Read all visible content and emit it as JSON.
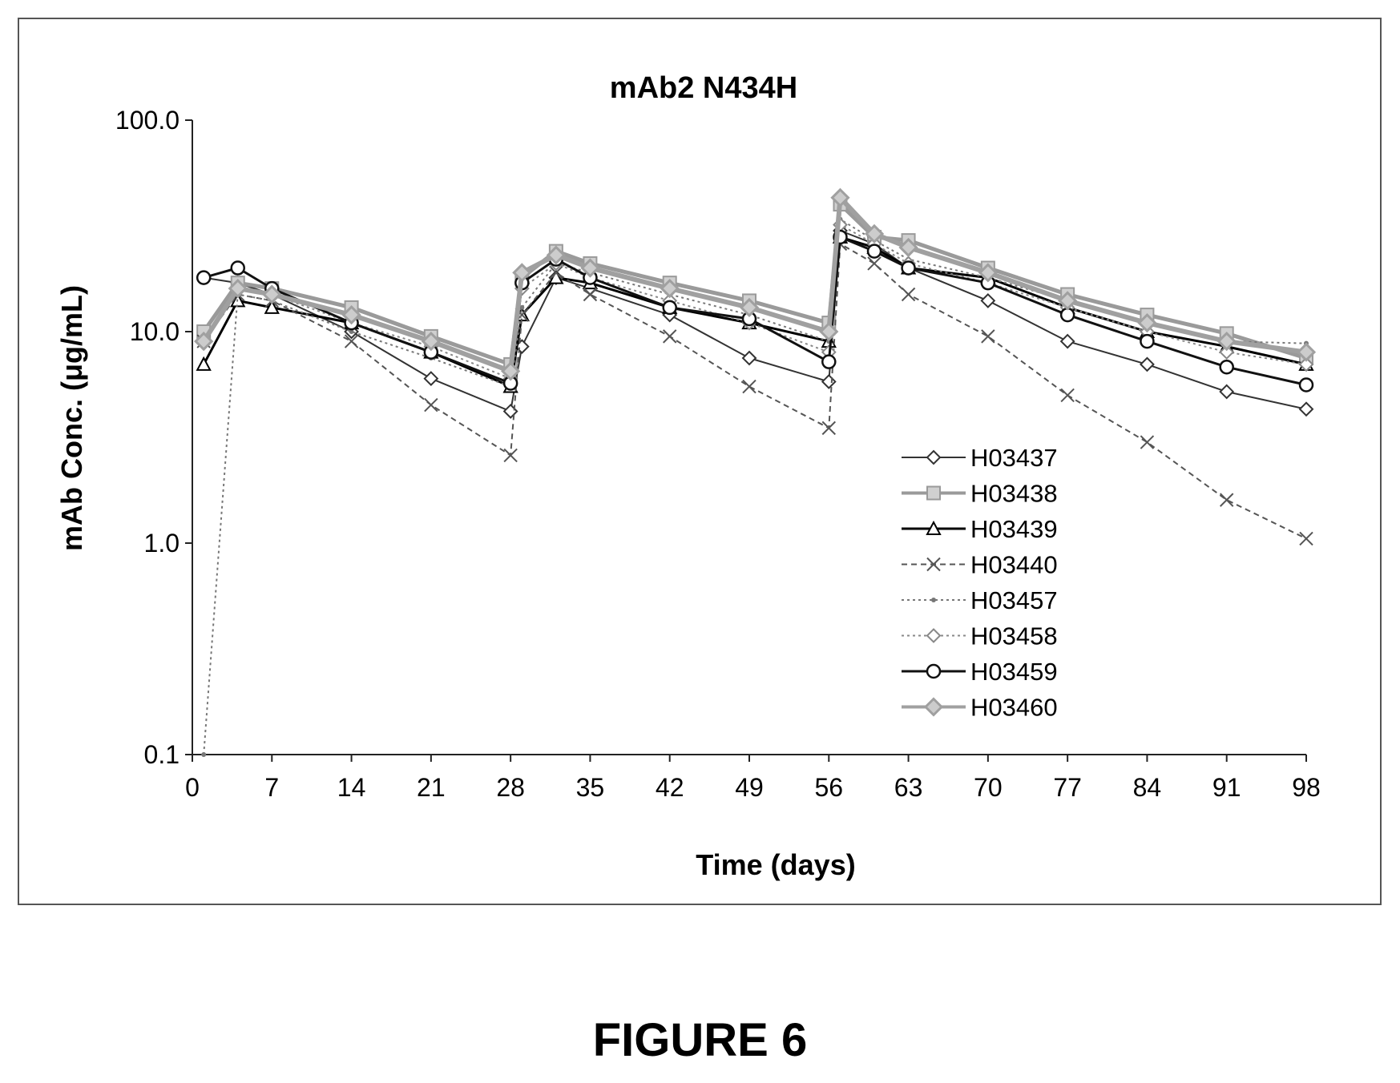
{
  "figure": {
    "caption": "FIGURE 6"
  },
  "chart_data": {
    "type": "line",
    "title": "mAb2 N434H",
    "xlabel": "Time (days)",
    "ylabel": "mAb Conc. (μg/mL)",
    "yscale": "log",
    "xlim": [
      0,
      98
    ],
    "ylim": [
      0.1,
      100
    ],
    "xticks": [
      "0",
      "7",
      "14",
      "21",
      "28",
      "35",
      "42",
      "49",
      "56",
      "63",
      "70",
      "77",
      "84",
      "91",
      "98"
    ],
    "yticks": [
      "0.1",
      "1.0",
      "10.0",
      "100.0"
    ],
    "legend_position": "right-middle",
    "grid": false,
    "series": [
      {
        "name": "H03437",
        "marker": "diamond",
        "dash": "",
        "color": "#333333",
        "width": 2,
        "points": [
          [
            1,
            18
          ],
          [
            4,
            17
          ],
          [
            7,
            15
          ],
          [
            14,
            10
          ],
          [
            21,
            6
          ],
          [
            28,
            4.2
          ],
          [
            29,
            8.5
          ],
          [
            32,
            18
          ],
          [
            35,
            16
          ],
          [
            42,
            12
          ],
          [
            49,
            7.5
          ],
          [
            56,
            5.8
          ],
          [
            57,
            30
          ],
          [
            60,
            26
          ],
          [
            63,
            20
          ],
          [
            70,
            14
          ],
          [
            77,
            9
          ],
          [
            84,
            7
          ],
          [
            91,
            5.2
          ],
          [
            98,
            4.3
          ]
        ]
      },
      {
        "name": "H03438",
        "marker": "square-hatch",
        "dash": "",
        "color": "#9a9a9a",
        "width": 5,
        "points": [
          [
            1,
            10
          ],
          [
            4,
            17
          ],
          [
            7,
            16
          ],
          [
            14,
            13
          ],
          [
            21,
            9.5
          ],
          [
            28,
            7
          ],
          [
            29,
            18
          ],
          [
            32,
            24
          ],
          [
            35,
            21
          ],
          [
            42,
            17
          ],
          [
            49,
            14
          ],
          [
            56,
            11
          ],
          [
            57,
            40
          ],
          [
            60,
            28
          ],
          [
            63,
            27
          ],
          [
            70,
            20
          ],
          [
            77,
            15
          ],
          [
            84,
            12
          ],
          [
            91,
            9.8
          ],
          [
            98,
            7.5
          ]
        ]
      },
      {
        "name": "H03439",
        "marker": "triangle",
        "dash": "",
        "color": "#000000",
        "width": 3,
        "points": [
          [
            1,
            7
          ],
          [
            4,
            14
          ],
          [
            7,
            13
          ],
          [
            14,
            11
          ],
          [
            21,
            8
          ],
          [
            28,
            5.5
          ],
          [
            29,
            12
          ],
          [
            32,
            18
          ],
          [
            35,
            17
          ],
          [
            42,
            13
          ],
          [
            49,
            11
          ],
          [
            56,
            9
          ],
          [
            57,
            28
          ],
          [
            60,
            25
          ],
          [
            63,
            20
          ],
          [
            70,
            18
          ],
          [
            77,
            13
          ],
          [
            84,
            10
          ],
          [
            91,
            8.5
          ],
          [
            98,
            7
          ]
        ]
      },
      {
        "name": "H03440",
        "marker": "x",
        "dash": "7 5",
        "color": "#555555",
        "width": 2,
        "points": [
          [
            1,
            9
          ],
          [
            4,
            15
          ],
          [
            7,
            14
          ],
          [
            14,
            9
          ],
          [
            21,
            4.5
          ],
          [
            28,
            2.6
          ],
          [
            29,
            12
          ],
          [
            32,
            19
          ],
          [
            35,
            15
          ],
          [
            42,
            9.5
          ],
          [
            49,
            5.5
          ],
          [
            56,
            3.5
          ],
          [
            57,
            26
          ],
          [
            60,
            21
          ],
          [
            63,
            15
          ],
          [
            70,
            9.5
          ],
          [
            77,
            5
          ],
          [
            84,
            3
          ],
          [
            91,
            1.6
          ],
          [
            98,
            1.05
          ]
        ]
      },
      {
        "name": "H03457",
        "marker": "dot",
        "dash": "3 4",
        "color": "#777777",
        "width": 2,
        "points": [
          [
            1,
            0.1
          ],
          [
            4,
            15
          ],
          [
            7,
            14
          ],
          [
            14,
            10
          ],
          [
            21,
            7.5
          ],
          [
            28,
            5.5
          ],
          [
            29,
            13
          ],
          [
            32,
            21
          ],
          [
            35,
            19
          ],
          [
            42,
            15
          ],
          [
            49,
            12
          ],
          [
            56,
            9
          ],
          [
            57,
            34
          ],
          [
            60,
            27
          ],
          [
            63,
            22
          ],
          [
            70,
            18
          ],
          [
            77,
            14
          ],
          [
            84,
            11
          ],
          [
            91,
            9
          ],
          [
            98,
            8.8
          ]
        ]
      },
      {
        "name": "H03458",
        "marker": "diamond-open",
        "dash": "3 4",
        "color": "#888888",
        "width": 2,
        "points": [
          [
            1,
            9
          ],
          [
            4,
            16
          ],
          [
            7,
            15
          ],
          [
            14,
            11
          ],
          [
            21,
            8.5
          ],
          [
            28,
            6
          ],
          [
            29,
            16
          ],
          [
            32,
            21
          ],
          [
            35,
            18
          ],
          [
            42,
            14
          ],
          [
            49,
            11
          ],
          [
            56,
            8
          ],
          [
            57,
            32
          ],
          [
            60,
            26
          ],
          [
            63,
            21
          ],
          [
            70,
            17
          ],
          [
            77,
            13
          ],
          [
            84,
            10
          ],
          [
            91,
            8
          ],
          [
            98,
            7
          ]
        ]
      },
      {
        "name": "H03459",
        "marker": "circle",
        "dash": "",
        "color": "#111111",
        "width": 3,
        "points": [
          [
            1,
            18
          ],
          [
            4,
            20
          ],
          [
            7,
            16
          ],
          [
            14,
            11
          ],
          [
            21,
            8
          ],
          [
            28,
            5.7
          ],
          [
            29,
            17
          ],
          [
            32,
            22
          ],
          [
            35,
            18
          ],
          [
            42,
            13
          ],
          [
            49,
            11.5
          ],
          [
            56,
            7.2
          ],
          [
            57,
            28
          ],
          [
            60,
            24
          ],
          [
            63,
            20
          ],
          [
            70,
            17
          ],
          [
            77,
            12
          ],
          [
            84,
            9
          ],
          [
            91,
            6.8
          ],
          [
            98,
            5.6
          ]
        ]
      },
      {
        "name": "H03460",
        "marker": "diamond-hatch",
        "dash": "",
        "color": "#a0a0a0",
        "width": 6,
        "points": [
          [
            1,
            9
          ],
          [
            4,
            16
          ],
          [
            7,
            15
          ],
          [
            14,
            12
          ],
          [
            21,
            9
          ],
          [
            28,
            6.5
          ],
          [
            29,
            19
          ],
          [
            32,
            23
          ],
          [
            35,
            20
          ],
          [
            42,
            16
          ],
          [
            49,
            13
          ],
          [
            56,
            10
          ],
          [
            57,
            43
          ],
          [
            60,
            29
          ],
          [
            63,
            25
          ],
          [
            70,
            19
          ],
          [
            77,
            14
          ],
          [
            84,
            11
          ],
          [
            91,
            9
          ],
          [
            98,
            8
          ]
        ]
      }
    ]
  }
}
